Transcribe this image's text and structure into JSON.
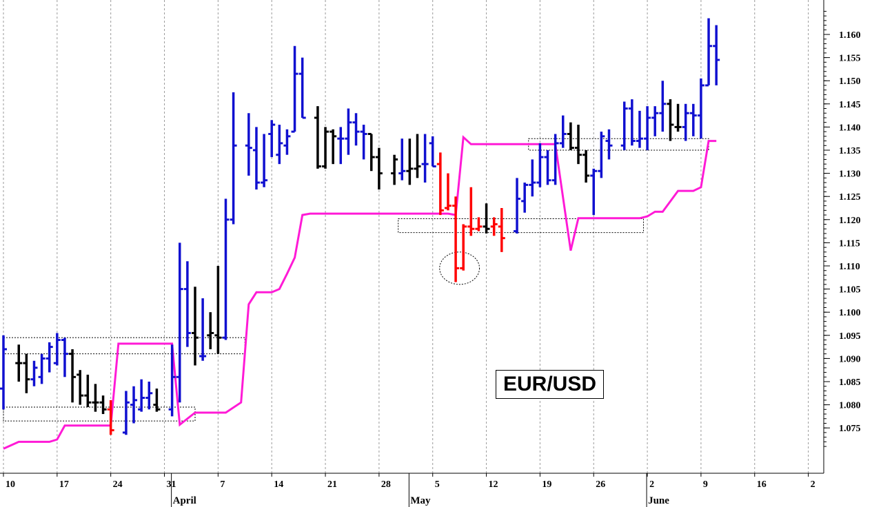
{
  "chart_data": {
    "type": "ohlc",
    "title": "EUR/USD",
    "x_axis": {
      "day_labels": [
        {
          "x": 0,
          "label": "10"
        },
        {
          "x": 7,
          "label": "17"
        },
        {
          "x": 14,
          "label": "24"
        },
        {
          "x": 21,
          "label": "31"
        },
        {
          "x": 28,
          "label": "7"
        },
        {
          "x": 35,
          "label": "14"
        },
        {
          "x": 42,
          "label": "21"
        },
        {
          "x": 49,
          "label": "28"
        },
        {
          "x": 56,
          "label": "5"
        },
        {
          "x": 63,
          "label": "12"
        },
        {
          "x": 70,
          "label": "19"
        },
        {
          "x": 77,
          "label": "26"
        },
        {
          "x": 84,
          "label": "2"
        },
        {
          "x": 91,
          "label": "9"
        },
        {
          "x": 98,
          "label": "16"
        },
        {
          "x": 105,
          "label": "2"
        }
      ],
      "month_labels": [
        {
          "x": 22,
          "label": "April"
        },
        {
          "x": 53,
          "label": "May"
        },
        {
          "x": 84,
          "label": "June"
        }
      ],
      "range": [
        0,
        106
      ]
    },
    "y_axis": {
      "range": [
        1.0705,
        1.1655
      ],
      "ticks": [
        "1.075",
        "1.080",
        "1.085",
        "1.090",
        "1.095",
        "1.100",
        "1.105",
        "1.110",
        "1.115",
        "1.120",
        "1.125",
        "1.130",
        "1.135",
        "1.140",
        "1.145",
        "1.150",
        "1.155",
        "1.160"
      ]
    },
    "grid": {
      "vertical": true,
      "horizontal": false
    },
    "colors": {
      "up": "#1010d0",
      "neutral": "#000000",
      "down": "#ff0000",
      "stop_line": "#ff1ad6",
      "dotted_box": "#000000"
    },
    "bars": [
      {
        "x": 0,
        "o": 1.0835,
        "h": 1.095,
        "l": 1.079,
        "c": 1.092,
        "color": "up"
      },
      {
        "x": 2,
        "o": 1.089,
        "h": 1.093,
        "l": 1.085,
        "c": 1.089,
        "color": "neutral"
      },
      {
        "x": 3,
        "o": 1.089,
        "h": 1.091,
        "l": 1.0825,
        "c": 1.0855,
        "color": "neutral"
      },
      {
        "x": 4,
        "o": 1.0855,
        "h": 1.0895,
        "l": 1.084,
        "c": 1.088,
        "color": "up"
      },
      {
        "x": 5,
        "o": 1.086,
        "h": 1.091,
        "l": 1.0845,
        "c": 1.09,
        "color": "up"
      },
      {
        "x": 6,
        "o": 1.09,
        "h": 1.0935,
        "l": 1.087,
        "c": 1.0925,
        "color": "up"
      },
      {
        "x": 7,
        "o": 1.089,
        "h": 1.0955,
        "l": 1.0885,
        "c": 1.094,
        "color": "up"
      },
      {
        "x": 8,
        "o": 1.094,
        "h": 1.0945,
        "l": 1.086,
        "c": 1.091,
        "color": "up"
      },
      {
        "x": 9,
        "o": 1.091,
        "h": 1.092,
        "l": 1.0805,
        "c": 1.086,
        "color": "neutral"
      },
      {
        "x": 10,
        "o": 1.0865,
        "h": 1.0875,
        "l": 1.08,
        "c": 1.082,
        "color": "neutral"
      },
      {
        "x": 11,
        "o": 1.082,
        "h": 1.0865,
        "l": 1.0795,
        "c": 1.0805,
        "color": "neutral"
      },
      {
        "x": 12,
        "o": 1.0805,
        "h": 1.0845,
        "l": 1.0785,
        "c": 1.0805,
        "color": "neutral"
      },
      {
        "x": 13,
        "o": 1.0805,
        "h": 1.082,
        "l": 1.078,
        "c": 1.079,
        "color": "neutral"
      },
      {
        "x": 14,
        "o": 1.079,
        "h": 1.081,
        "l": 1.0735,
        "c": 1.0745,
        "color": "down"
      },
      {
        "x": 16,
        "o": 1.074,
        "h": 1.083,
        "l": 1.0735,
        "c": 1.0805,
        "color": "up"
      },
      {
        "x": 17,
        "o": 1.08,
        "h": 1.084,
        "l": 1.076,
        "c": 1.081,
        "color": "up"
      },
      {
        "x": 18,
        "o": 1.079,
        "h": 1.0855,
        "l": 1.0785,
        "c": 1.0815,
        "color": "up"
      },
      {
        "x": 19,
        "o": 1.0815,
        "h": 1.085,
        "l": 1.079,
        "c": 1.0825,
        "color": "up"
      },
      {
        "x": 20,
        "o": 1.08,
        "h": 1.0835,
        "l": 1.0785,
        "c": 1.079,
        "color": "neutral"
      },
      {
        "x": 22,
        "o": 1.079,
        "h": 1.093,
        "l": 1.0775,
        "c": 1.086,
        "color": "up"
      },
      {
        "x": 23,
        "o": 1.086,
        "h": 1.115,
        "l": 1.0805,
        "c": 1.105,
        "color": "up"
      },
      {
        "x": 24,
        "o": 1.105,
        "h": 1.111,
        "l": 1.0925,
        "c": 1.0955,
        "color": "up"
      },
      {
        "x": 25,
        "o": 1.0955,
        "h": 1.1055,
        "l": 1.0885,
        "c": 1.0945,
        "color": "neutral"
      },
      {
        "x": 26,
        "o": 1.0905,
        "h": 1.103,
        "l": 1.0895,
        "c": 1.0905,
        "color": "up"
      },
      {
        "x": 27,
        "o": 1.095,
        "h": 1.1,
        "l": 1.092,
        "c": 1.0955,
        "color": "neutral"
      },
      {
        "x": 28,
        "o": 1.095,
        "h": 1.11,
        "l": 1.091,
        "c": 1.0945,
        "color": "neutral"
      },
      {
        "x": 29,
        "o": 1.0945,
        "h": 1.1245,
        "l": 1.094,
        "c": 1.12,
        "color": "up"
      },
      {
        "x": 30,
        "o": 1.12,
        "h": 1.1475,
        "l": 1.119,
        "c": 1.136,
        "color": "up"
      },
      {
        "x": 32,
        "o": 1.136,
        "h": 1.143,
        "l": 1.1295,
        "c": 1.1355,
        "color": "up"
      },
      {
        "x": 33,
        "o": 1.135,
        "h": 1.14,
        "l": 1.1265,
        "c": 1.128,
        "color": "up"
      },
      {
        "x": 34,
        "o": 1.128,
        "h": 1.1385,
        "l": 1.127,
        "c": 1.1285,
        "color": "up"
      },
      {
        "x": 35,
        "o": 1.1385,
        "h": 1.1415,
        "l": 1.1335,
        "c": 1.1405,
        "color": "up"
      },
      {
        "x": 36,
        "o": 1.134,
        "h": 1.1405,
        "l": 1.132,
        "c": 1.1365,
        "color": "up"
      },
      {
        "x": 37,
        "o": 1.136,
        "h": 1.1395,
        "l": 1.134,
        "c": 1.138,
        "color": "up"
      },
      {
        "x": 38,
        "o": 1.139,
        "h": 1.1575,
        "l": 1.139,
        "c": 1.1515,
        "color": "up"
      },
      {
        "x": 39,
        "o": 1.1515,
        "h": 1.155,
        "l": 1.142,
        "c": 1.142,
        "color": "up"
      },
      {
        "x": 41,
        "o": 1.142,
        "h": 1.1445,
        "l": 1.131,
        "c": 1.1315,
        "color": "neutral"
      },
      {
        "x": 42,
        "o": 1.1315,
        "h": 1.14,
        "l": 1.131,
        "c": 1.139,
        "color": "neutral"
      },
      {
        "x": 43,
        "o": 1.139,
        "h": 1.1395,
        "l": 1.132,
        "c": 1.138,
        "color": "neutral"
      },
      {
        "x": 44,
        "o": 1.1375,
        "h": 1.14,
        "l": 1.132,
        "c": 1.1375,
        "color": "up"
      },
      {
        "x": 45,
        "o": 1.1375,
        "h": 1.144,
        "l": 1.134,
        "c": 1.141,
        "color": "up"
      },
      {
        "x": 46,
        "o": 1.141,
        "h": 1.143,
        "l": 1.136,
        "c": 1.139,
        "color": "up"
      },
      {
        "x": 47,
        "o": 1.139,
        "h": 1.1405,
        "l": 1.133,
        "c": 1.1385,
        "color": "up"
      },
      {
        "x": 48,
        "o": 1.1385,
        "h": 1.1385,
        "l": 1.1305,
        "c": 1.1335,
        "color": "neutral"
      },
      {
        "x": 49,
        "o": 1.1335,
        "h": 1.1355,
        "l": 1.1265,
        "c": 1.13,
        "color": "neutral"
      },
      {
        "x": 51,
        "o": 1.13,
        "h": 1.134,
        "l": 1.1275,
        "c": 1.133,
        "color": "neutral"
      },
      {
        "x": 52,
        "o": 1.13,
        "h": 1.1375,
        "l": 1.1285,
        "c": 1.1305,
        "color": "up"
      },
      {
        "x": 53,
        "o": 1.1305,
        "h": 1.1375,
        "l": 1.1275,
        "c": 1.131,
        "color": "neutral"
      },
      {
        "x": 54,
        "o": 1.131,
        "h": 1.1385,
        "l": 1.129,
        "c": 1.1315,
        "color": "neutral"
      },
      {
        "x": 55,
        "o": 1.132,
        "h": 1.1385,
        "l": 1.128,
        "c": 1.132,
        "color": "up"
      },
      {
        "x": 56,
        "o": 1.1365,
        "h": 1.138,
        "l": 1.1315,
        "c": 1.1315,
        "color": "up"
      },
      {
        "x": 57,
        "o": 1.132,
        "h": 1.1345,
        "l": 1.121,
        "c": 1.122,
        "color": "down"
      },
      {
        "x": 58,
        "o": 1.1225,
        "h": 1.13,
        "l": 1.122,
        "c": 1.123,
        "color": "down"
      },
      {
        "x": 59,
        "o": 1.123,
        "h": 1.125,
        "l": 1.1065,
        "c": 1.1095,
        "color": "down"
      },
      {
        "x": 60,
        "o": 1.1095,
        "h": 1.119,
        "l": 1.109,
        "c": 1.1185,
        "color": "down"
      },
      {
        "x": 61,
        "o": 1.1185,
        "h": 1.127,
        "l": 1.1165,
        "c": 1.118,
        "color": "down"
      },
      {
        "x": 62,
        "o": 1.118,
        "h": 1.1205,
        "l": 1.1175,
        "c": 1.1185,
        "color": "down"
      },
      {
        "x": 63,
        "o": 1.1185,
        "h": 1.1235,
        "l": 1.117,
        "c": 1.118,
        "color": "neutral"
      },
      {
        "x": 64,
        "o": 1.1185,
        "h": 1.1205,
        "l": 1.1165,
        "c": 1.119,
        "color": "down"
      },
      {
        "x": 65,
        "o": 1.1185,
        "h": 1.1225,
        "l": 1.113,
        "c": 1.116,
        "color": "down"
      },
      {
        "x": 67,
        "o": 1.1175,
        "h": 1.129,
        "l": 1.117,
        "c": 1.1245,
        "color": "up"
      },
      {
        "x": 68,
        "o": 1.124,
        "h": 1.128,
        "l": 1.1215,
        "c": 1.1275,
        "color": "up"
      },
      {
        "x": 69,
        "o": 1.1275,
        "h": 1.133,
        "l": 1.125,
        "c": 1.128,
        "color": "up"
      },
      {
        "x": 70,
        "o": 1.128,
        "h": 1.1365,
        "l": 1.127,
        "c": 1.1335,
        "color": "up"
      },
      {
        "x": 71,
        "o": 1.1335,
        "h": 1.135,
        "l": 1.1275,
        "c": 1.1285,
        "color": "up"
      },
      {
        "x": 72,
        "o": 1.1285,
        "h": 1.1385,
        "l": 1.1275,
        "c": 1.1365,
        "color": "up"
      },
      {
        "x": 73,
        "o": 1.1365,
        "h": 1.1425,
        "l": 1.1355,
        "c": 1.1385,
        "color": "up"
      },
      {
        "x": 74,
        "o": 1.1385,
        "h": 1.141,
        "l": 1.135,
        "c": 1.1355,
        "color": "neutral"
      },
      {
        "x": 75,
        "o": 1.1355,
        "h": 1.1405,
        "l": 1.132,
        "c": 1.134,
        "color": "neutral"
      },
      {
        "x": 76,
        "o": 1.134,
        "h": 1.135,
        "l": 1.128,
        "c": 1.1295,
        "color": "neutral"
      },
      {
        "x": 77,
        "o": 1.1295,
        "h": 1.131,
        "l": 1.121,
        "c": 1.1305,
        "color": "up"
      },
      {
        "x": 78,
        "o": 1.1305,
        "h": 1.139,
        "l": 1.129,
        "c": 1.138,
        "color": "up"
      },
      {
        "x": 79,
        "o": 1.137,
        "h": 1.1395,
        "l": 1.133,
        "c": 1.136,
        "color": "up"
      },
      {
        "x": 81,
        "o": 1.136,
        "h": 1.1455,
        "l": 1.135,
        "c": 1.144,
        "color": "up"
      },
      {
        "x": 82,
        "o": 1.144,
        "h": 1.146,
        "l": 1.136,
        "c": 1.137,
        "color": "up"
      },
      {
        "x": 83,
        "o": 1.137,
        "h": 1.1435,
        "l": 1.1355,
        "c": 1.1375,
        "color": "up"
      },
      {
        "x": 84,
        "o": 1.1375,
        "h": 1.1445,
        "l": 1.135,
        "c": 1.142,
        "color": "up"
      },
      {
        "x": 85,
        "o": 1.142,
        "h": 1.1445,
        "l": 1.138,
        "c": 1.143,
        "color": "up"
      },
      {
        "x": 86,
        "o": 1.143,
        "h": 1.15,
        "l": 1.139,
        "c": 1.145,
        "color": "up"
      },
      {
        "x": 87,
        "o": 1.145,
        "h": 1.146,
        "l": 1.137,
        "c": 1.1405,
        "color": "neutral"
      },
      {
        "x": 88,
        "o": 1.14,
        "h": 1.145,
        "l": 1.139,
        "c": 1.14,
        "color": "neutral"
      },
      {
        "x": 89,
        "o": 1.14,
        "h": 1.145,
        "l": 1.137,
        "c": 1.143,
        "color": "up"
      },
      {
        "x": 90,
        "o": 1.143,
        "h": 1.145,
        "l": 1.138,
        "c": 1.1425,
        "color": "up"
      },
      {
        "x": 91,
        "o": 1.1425,
        "h": 1.1505,
        "l": 1.1375,
        "c": 1.149,
        "color": "up"
      },
      {
        "x": 92,
        "o": 1.149,
        "h": 1.1635,
        "l": 1.149,
        "c": 1.1575,
        "color": "up"
      },
      {
        "x": 93,
        "o": 1.1575,
        "h": 1.162,
        "l": 1.149,
        "c": 1.1545,
        "color": "up"
      }
    ],
    "stop_line": [
      [
        0,
        1.0705
      ],
      [
        2,
        1.072
      ],
      [
        6,
        1.072
      ],
      [
        7,
        1.0725
      ],
      [
        8,
        1.0755
      ],
      [
        14,
        1.0755
      ],
      [
        15,
        1.0932
      ],
      [
        22,
        1.0932
      ],
      [
        23,
        1.0757
      ],
      [
        25,
        1.0783
      ],
      [
        29,
        1.0783
      ],
      [
        31,
        1.0805
      ],
      [
        32,
        1.1017
      ],
      [
        33,
        1.1043
      ],
      [
        35,
        1.1043
      ],
      [
        36,
        1.105
      ],
      [
        37,
        1.1083
      ],
      [
        38,
        1.1118
      ],
      [
        39,
        1.121
      ],
      [
        40,
        1.1213
      ],
      [
        58,
        1.1213
      ],
      [
        59,
        1.121
      ],
      [
        60,
        1.1378
      ],
      [
        61,
        1.1363
      ],
      [
        71,
        1.1363
      ],
      [
        72,
        1.1363
      ],
      [
        74,
        1.1133
      ],
      [
        75,
        1.1203
      ],
      [
        83,
        1.1203
      ],
      [
        84,
        1.1207
      ],
      [
        85,
        1.1217
      ],
      [
        86,
        1.1217
      ],
      [
        88,
        1.1262
      ],
      [
        90,
        1.1262
      ],
      [
        91,
        1.127
      ],
      [
        92,
        1.137
      ],
      [
        93,
        1.137
      ]
    ],
    "dotted_boxes": [
      {
        "x1": 0,
        "x2": 31.5,
        "y_top": 1.0945,
        "y_bottom": 1.091
      },
      {
        "x1": 0,
        "x2": 25,
        "y_top": 1.0795,
        "y_bottom": 1.0765
      },
      {
        "x1": 51.5,
        "x2": 83.5,
        "y_top": 1.1202,
        "y_bottom": 1.1172
      },
      {
        "x1": 68.5,
        "x2": 92,
        "y_top": 1.1375,
        "y_bottom": 1.135
      }
    ],
    "dotted_ellipses": [
      {
        "cx": 59.5,
        "cy": 1.1095,
        "rx": 2.6,
        "ry": 0.0035
      }
    ]
  }
}
